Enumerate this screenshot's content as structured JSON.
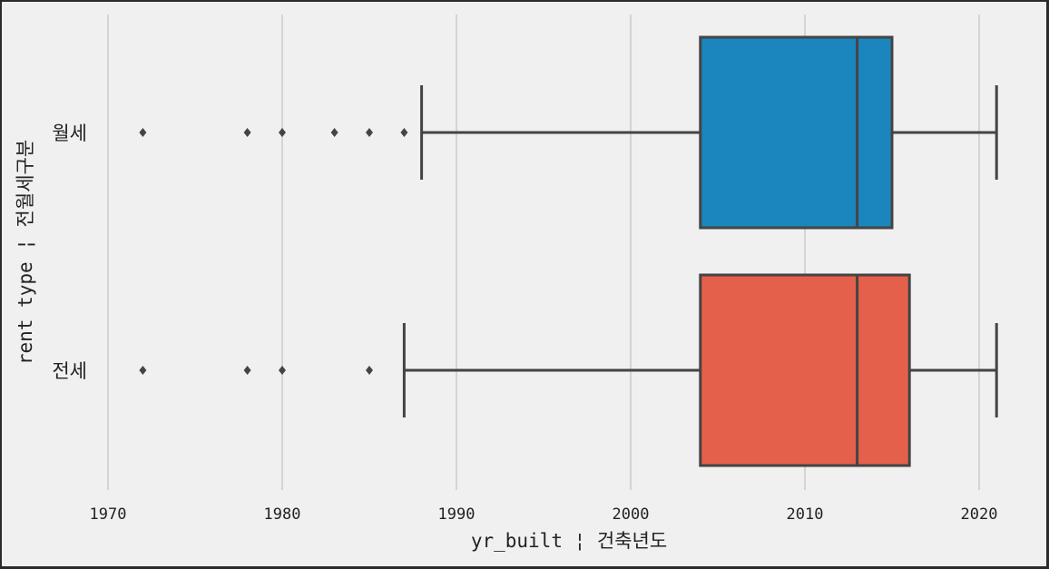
{
  "chart_data": {
    "type": "box",
    "orientation": "horizontal",
    "xlabel": "yr_built ¦ 건축년도",
    "ylabel": "rent type ¦ 전월세구분",
    "xlim": [
      1970,
      2022
    ],
    "xticks": [
      1970,
      1980,
      1990,
      2000,
      2010,
      2020
    ],
    "grid": "vertical",
    "categories": [
      "월세",
      "전세"
    ],
    "boxes": [
      {
        "category": "월세",
        "color": "#1a86bd",
        "whisker_low": 1988,
        "q1": 2004,
        "median": 2013,
        "q3": 2015,
        "whisker_high": 2021,
        "outliers": [
          1972,
          1978,
          1980,
          1983,
          1985,
          1987
        ]
      },
      {
        "category": "전세",
        "color": "#e5604a",
        "whisker_low": 1987,
        "q1": 2004,
        "median": 2013,
        "q3": 2016,
        "whisker_high": 2021,
        "outliers": [
          1972,
          1978,
          1980,
          1985
        ]
      }
    ]
  }
}
